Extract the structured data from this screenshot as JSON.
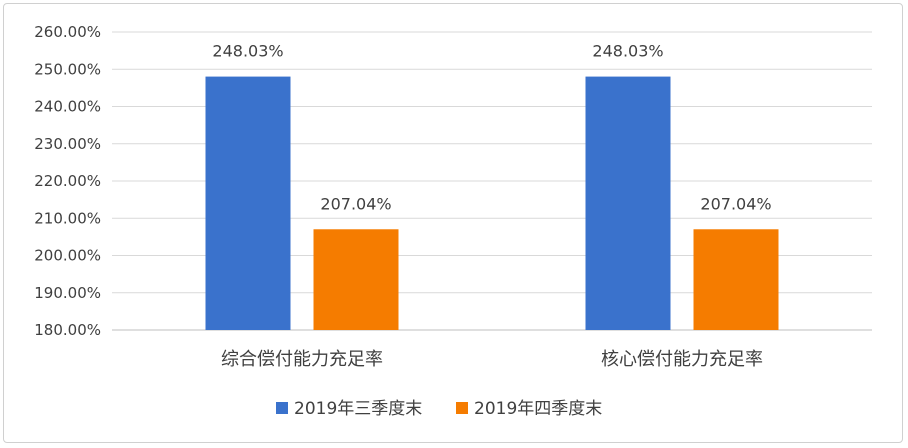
{
  "chart_data": {
    "type": "bar",
    "categories": [
      "综合偿付能力充足率",
      "核心偿付能力充足率"
    ],
    "series": [
      {
        "name": "2019年三季度末",
        "color": "#3a72cc",
        "values": [
          248.03,
          248.03
        ],
        "labels": [
          "248.03%",
          "248.03%"
        ]
      },
      {
        "name": "2019年四季度末",
        "color": "#f57c00",
        "values": [
          207.04,
          207.04
        ],
        "labels": [
          "207.04%",
          "207.04%"
        ]
      }
    ],
    "ylim": [
      180,
      260
    ],
    "yticks": [
      "180.00%",
      "190.00%",
      "200.00%",
      "210.00%",
      "220.00%",
      "230.00%",
      "240.00%",
      "250.00%",
      "260.00%"
    ],
    "grid": true,
    "legend": "bottom"
  }
}
